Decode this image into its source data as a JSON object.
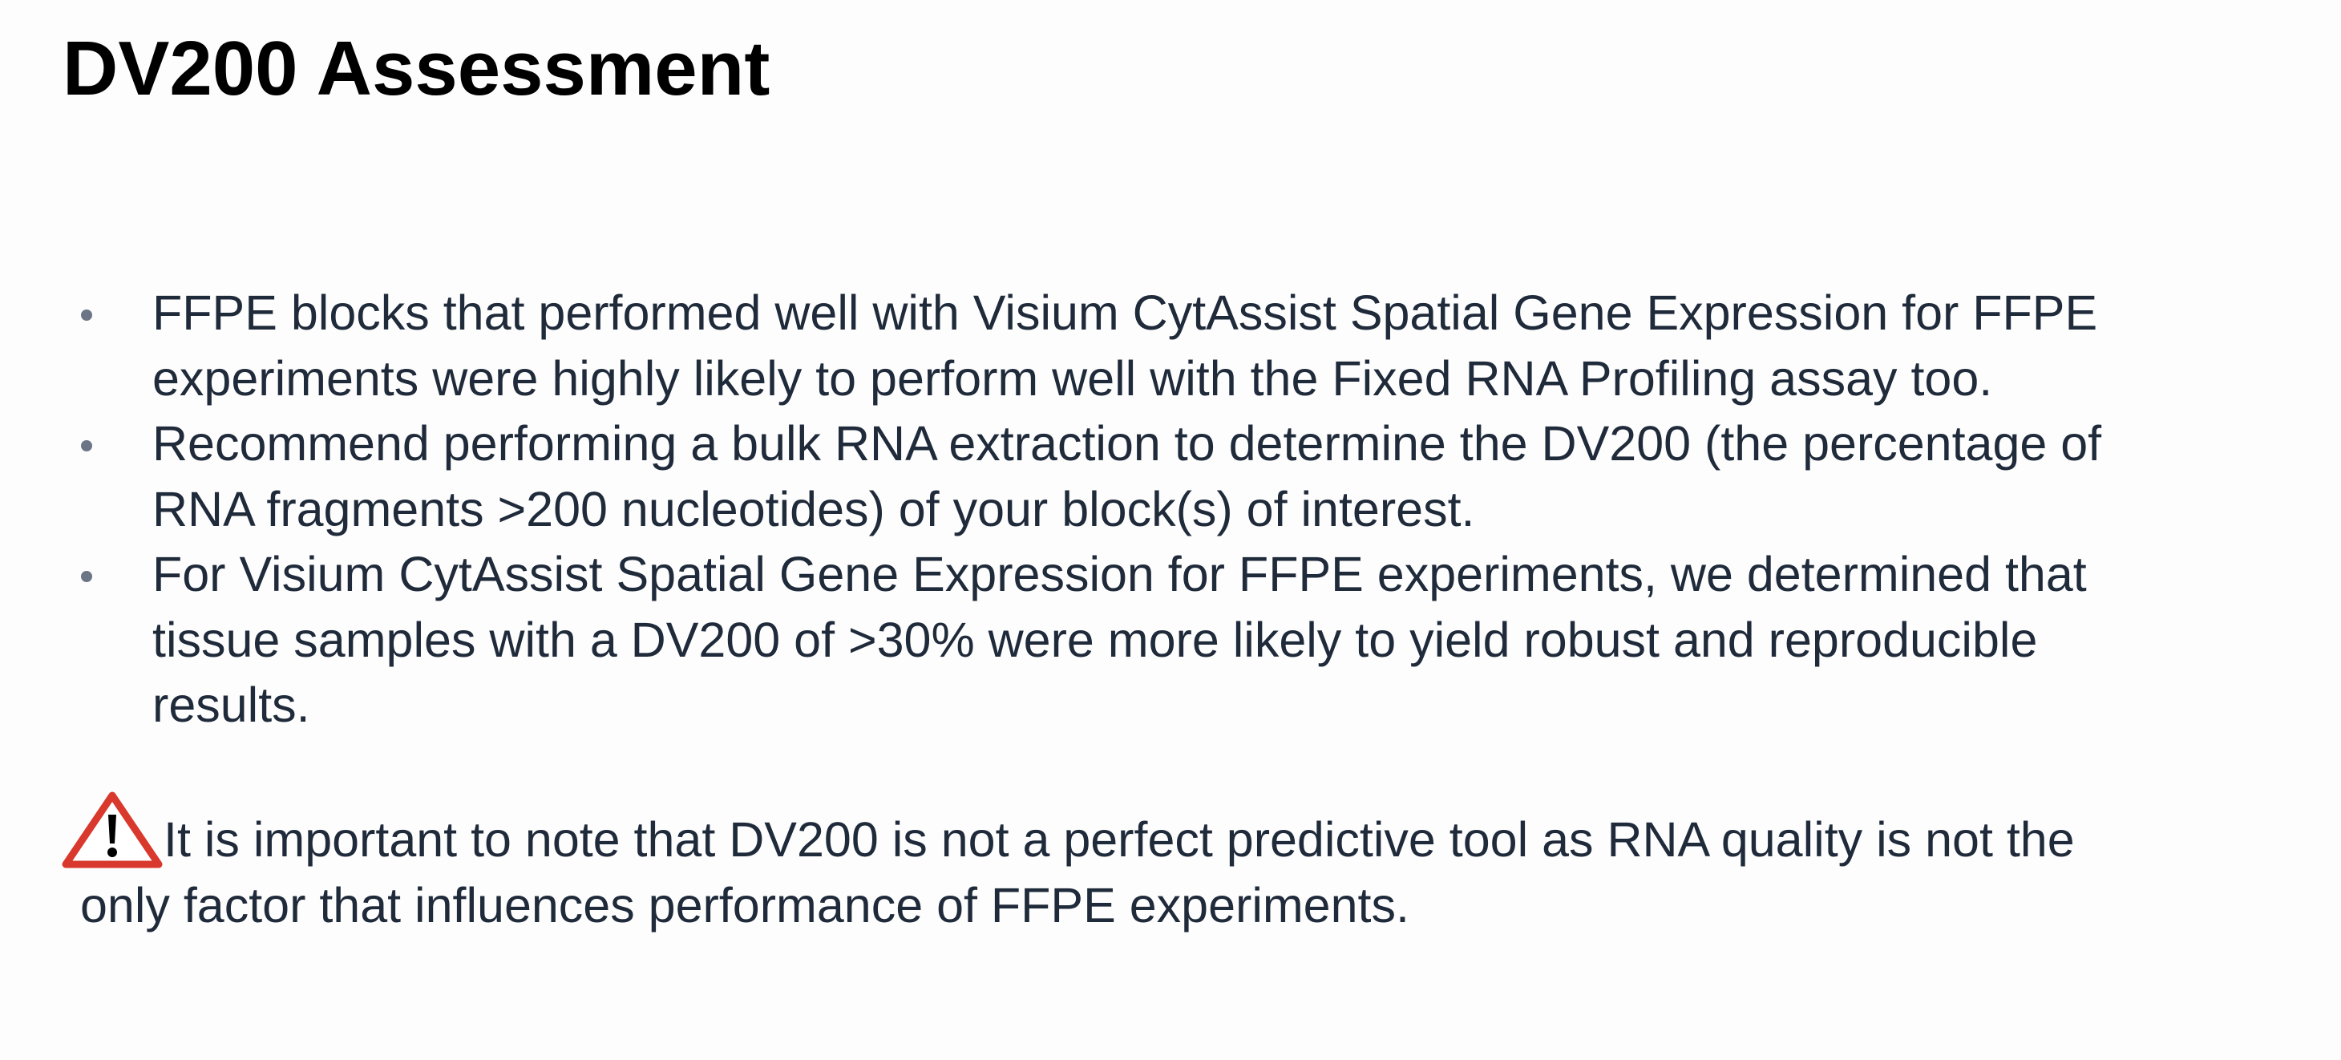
{
  "slide": {
    "title": "DV200 Assessment",
    "bullets": [
      {
        "lines": [
          "FFPE blocks that performed well with Visium CytAssist Spatial Gene Expression for FFPE",
          "experiments were highly likely to perform well with the Fixed RNA Profiling assay too."
        ]
      },
      {
        "lines": [
          "Recommend performing a bulk RNA extraction to determine the DV200 (the percentage of",
          "RNA fragments >200 nucleotides) of your block(s) of interest."
        ]
      },
      {
        "lines": [
          "For Visium CytAssist Spatial Gene Expression for FFPE experiments, we determined that",
          "tissue samples with a DV200 of >30% were more likely to yield robust and reproducible",
          "results."
        ]
      }
    ],
    "note": {
      "icon": "warning-triangle-icon",
      "icon_color": "#d9382c",
      "lines": [
        "It is important to note that DV200 is not a perfect predictive tool as RNA quality is not the",
        "only factor that influences performance of FFPE experiments."
      ]
    }
  },
  "colors": {
    "background": "#fdfdfd",
    "title": "#000000",
    "body_text": "#1f2a3a",
    "bullet": "#6b7585",
    "warning": "#d9382c"
  }
}
